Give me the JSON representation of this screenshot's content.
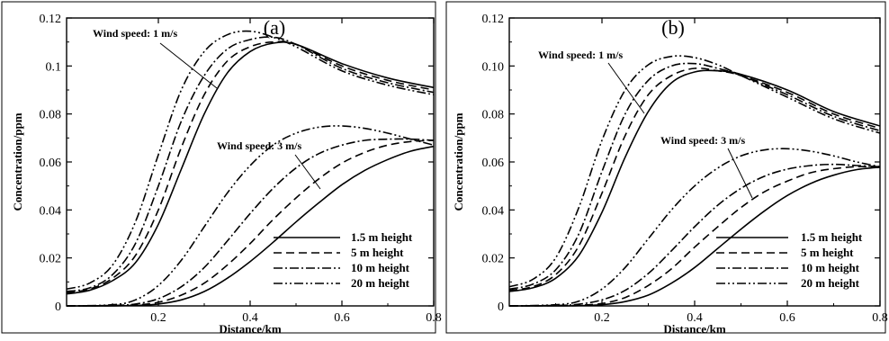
{
  "chart_data": [
    {
      "panel_label": "(a)",
      "type": "line",
      "xlabel": "Distance/km",
      "ylabel": "Concentration/ppm",
      "xlim": [
        0,
        0.8
      ],
      "ylim": [
        0,
        0.12
      ],
      "x_ticks": [
        "0.2",
        "0.4",
        "0.6",
        "0.8"
      ],
      "y_ticks": [
        "0",
        "0.02",
        "0.04",
        "0.06",
        "0.08",
        "0.1",
        "0.12"
      ],
      "legend": [
        "1.5 m height",
        "5 m height",
        "10 m height",
        "20 m height"
      ],
      "legend_position": "bottom-right",
      "annotations": [
        "Wind speed: 1 m/s",
        "Wind speed: 3 m/s"
      ],
      "series": [
        {
          "name": "1.5 m height",
          "group": "Wind speed: 1 m/s",
          "dash": "solid",
          "x": [
            0,
            0.05,
            0.1,
            0.15,
            0.2,
            0.25,
            0.3,
            0.35,
            0.4,
            0.45,
            0.5,
            0.6,
            0.7,
            0.8
          ],
          "y": [
            0.005,
            0.0065,
            0.0105,
            0.018,
            0.034,
            0.057,
            0.08,
            0.097,
            0.106,
            0.1095,
            0.109,
            0.101,
            0.095,
            0.091
          ]
        },
        {
          "name": "5 m height",
          "group": "Wind speed: 1 m/s",
          "dash": "dashed",
          "x": [
            0,
            0.05,
            0.1,
            0.15,
            0.2,
            0.25,
            0.3,
            0.35,
            0.4,
            0.45,
            0.5,
            0.6,
            0.7,
            0.8
          ],
          "y": [
            0.0055,
            0.007,
            0.0115,
            0.021,
            0.04,
            0.066,
            0.088,
            0.102,
            0.108,
            0.11,
            0.109,
            0.1,
            0.094,
            0.09
          ]
        },
        {
          "name": "10 m height",
          "group": "Wind speed: 1 m/s",
          "dash": "dashdot",
          "x": [
            0,
            0.05,
            0.1,
            0.15,
            0.2,
            0.25,
            0.3,
            0.35,
            0.4,
            0.45,
            0.5,
            0.6,
            0.7,
            0.8
          ],
          "y": [
            0.006,
            0.0075,
            0.013,
            0.026,
            0.05,
            0.077,
            0.096,
            0.107,
            0.111,
            0.112,
            0.109,
            0.099,
            0.093,
            0.089
          ]
        },
        {
          "name": "20 m height",
          "group": "Wind speed: 1 m/s",
          "dash": "dashdotdot",
          "x": [
            0,
            0.05,
            0.1,
            0.15,
            0.2,
            0.25,
            0.3,
            0.35,
            0.4,
            0.45,
            0.5,
            0.6,
            0.7,
            0.8
          ],
          "y": [
            0.007,
            0.0095,
            0.017,
            0.035,
            0.063,
            0.09,
            0.106,
            0.113,
            0.1145,
            0.112,
            0.108,
            0.098,
            0.092,
            0.088
          ]
        },
        {
          "name": "1.5 m height",
          "group": "Wind speed: 3 m/s",
          "dash": "solid",
          "x": [
            0,
            0.1,
            0.15,
            0.2,
            0.25,
            0.3,
            0.35,
            0.4,
            0.45,
            0.5,
            0.55,
            0.6,
            0.65,
            0.7,
            0.75,
            0.8
          ],
          "y": [
            0,
            0,
            0.0002,
            0.0008,
            0.0025,
            0.006,
            0.0115,
            0.0185,
            0.0265,
            0.035,
            0.043,
            0.0505,
            0.0565,
            0.061,
            0.0645,
            0.0665
          ]
        },
        {
          "name": "5 m height",
          "group": "Wind speed: 3 m/s",
          "dash": "dashed",
          "x": [
            0,
            0.1,
            0.15,
            0.2,
            0.25,
            0.3,
            0.35,
            0.4,
            0.45,
            0.5,
            0.55,
            0.6,
            0.65,
            0.7,
            0.75,
            0.8
          ],
          "y": [
            0,
            0.0001,
            0.0004,
            0.0015,
            0.0045,
            0.0095,
            0.017,
            0.026,
            0.036,
            0.045,
            0.053,
            0.0595,
            0.064,
            0.067,
            0.0685,
            0.069
          ]
        },
        {
          "name": "10 m height",
          "group": "Wind speed: 3 m/s",
          "dash": "dashdot",
          "x": [
            0,
            0.1,
            0.15,
            0.2,
            0.25,
            0.3,
            0.35,
            0.4,
            0.45,
            0.5,
            0.55,
            0.6,
            0.65,
            0.7,
            0.75,
            0.8
          ],
          "y": [
            0,
            0.0002,
            0.0008,
            0.003,
            0.008,
            0.016,
            0.027,
            0.0385,
            0.049,
            0.0575,
            0.0635,
            0.067,
            0.069,
            0.0695,
            0.0695,
            0.069
          ]
        },
        {
          "name": "20 m height",
          "group": "Wind speed: 3 m/s",
          "dash": "dashdotdot",
          "x": [
            0,
            0.1,
            0.15,
            0.2,
            0.25,
            0.3,
            0.35,
            0.4,
            0.45,
            0.5,
            0.55,
            0.6,
            0.65,
            0.7,
            0.75,
            0.8
          ],
          "y": [
            0,
            0.0005,
            0.0025,
            0.0085,
            0.019,
            0.033,
            0.047,
            0.0585,
            0.067,
            0.072,
            0.0745,
            0.075,
            0.074,
            0.072,
            0.0695,
            0.067
          ]
        }
      ]
    },
    {
      "panel_label": "(b)",
      "type": "line",
      "xlabel": "Distance/km",
      "ylabel": "Concentration/ppm",
      "xlim": [
        0,
        0.8
      ],
      "ylim": [
        0,
        0.12
      ],
      "x_ticks": [
        "0.2",
        "0.4",
        "0.6",
        "0.8"
      ],
      "y_ticks": [
        "0",
        "0.02",
        "0.04",
        "0.06",
        "0.08",
        "0.10",
        "0.12"
      ],
      "legend": [
        "1.5 m height",
        "5 m height",
        "10 m height",
        "20 m height"
      ],
      "legend_position": "bottom-right",
      "annotations": [
        "Wind speed: 1 m/s",
        "Wind speed: 3 m/s"
      ],
      "series": [
        {
          "name": "1.5 m height",
          "group": "Wind speed: 1 m/s",
          "dash": "solid",
          "x": [
            0,
            0.05,
            0.1,
            0.15,
            0.2,
            0.25,
            0.3,
            0.35,
            0.4,
            0.45,
            0.5,
            0.6,
            0.7,
            0.8
          ],
          "y": [
            0.006,
            0.0075,
            0.0115,
            0.021,
            0.039,
            0.062,
            0.081,
            0.093,
            0.0975,
            0.098,
            0.0965,
            0.09,
            0.081,
            0.075
          ]
        },
        {
          "name": "5 m height",
          "group": "Wind speed: 1 m/s",
          "dash": "dashed",
          "x": [
            0,
            0.05,
            0.1,
            0.15,
            0.2,
            0.25,
            0.3,
            0.35,
            0.4,
            0.45,
            0.5,
            0.6,
            0.7,
            0.8
          ],
          "y": [
            0.0065,
            0.008,
            0.013,
            0.025,
            0.047,
            0.071,
            0.088,
            0.096,
            0.099,
            0.098,
            0.096,
            0.089,
            0.08,
            0.074
          ]
        },
        {
          "name": "10 m height",
          "group": "Wind speed: 1 m/s",
          "dash": "dashdot",
          "x": [
            0,
            0.05,
            0.1,
            0.15,
            0.2,
            0.25,
            0.3,
            0.35,
            0.4,
            0.45,
            0.5,
            0.6,
            0.7,
            0.8
          ],
          "y": [
            0.007,
            0.009,
            0.015,
            0.03,
            0.056,
            0.08,
            0.094,
            0.1,
            0.101,
            0.099,
            0.096,
            0.088,
            0.079,
            0.073
          ]
        },
        {
          "name": "20 m height",
          "group": "Wind speed: 1 m/s",
          "dash": "dashdotdot",
          "x": [
            0,
            0.05,
            0.1,
            0.15,
            0.2,
            0.25,
            0.3,
            0.35,
            0.4,
            0.45,
            0.5,
            0.6,
            0.7,
            0.8
          ],
          "y": [
            0.008,
            0.011,
            0.02,
            0.041,
            0.069,
            0.09,
            0.1005,
            0.104,
            0.1035,
            0.1005,
            0.096,
            0.087,
            0.078,
            0.072
          ]
        },
        {
          "name": "1.5 m height",
          "group": "Wind speed: 3 m/s",
          "dash": "solid",
          "x": [
            0,
            0.1,
            0.15,
            0.2,
            0.25,
            0.3,
            0.35,
            0.4,
            0.45,
            0.5,
            0.55,
            0.6,
            0.65,
            0.7,
            0.75,
            0.8
          ],
          "y": [
            0,
            0,
            0.0001,
            0.0005,
            0.0018,
            0.0045,
            0.0095,
            0.016,
            0.024,
            0.032,
            0.0395,
            0.046,
            0.051,
            0.0545,
            0.0568,
            0.0578
          ]
        },
        {
          "name": "5 m height",
          "group": "Wind speed: 3 m/s",
          "dash": "dashed",
          "x": [
            0,
            0.1,
            0.15,
            0.2,
            0.25,
            0.3,
            0.35,
            0.4,
            0.45,
            0.5,
            0.55,
            0.6,
            0.65,
            0.7,
            0.75,
            0.8
          ],
          "y": [
            0,
            0.0001,
            0.0003,
            0.001,
            0.0035,
            0.0085,
            0.0155,
            0.0245,
            0.033,
            0.041,
            0.0475,
            0.052,
            0.0555,
            0.0572,
            0.058,
            0.058
          ]
        },
        {
          "name": "10 m height",
          "group": "Wind speed: 3 m/s",
          "dash": "dashdot",
          "x": [
            0,
            0.1,
            0.15,
            0.2,
            0.25,
            0.3,
            0.35,
            0.4,
            0.45,
            0.5,
            0.55,
            0.6,
            0.65,
            0.7,
            0.75,
            0.8
          ],
          "y": [
            0,
            0.0002,
            0.0007,
            0.0025,
            0.0065,
            0.0135,
            0.023,
            0.033,
            0.042,
            0.049,
            0.054,
            0.057,
            0.0585,
            0.059,
            0.0585,
            0.058
          ]
        },
        {
          "name": "20 m height",
          "group": "Wind speed: 3 m/s",
          "dash": "dashdotdot",
          "x": [
            0,
            0.1,
            0.15,
            0.2,
            0.25,
            0.3,
            0.35,
            0.4,
            0.45,
            0.5,
            0.55,
            0.6,
            0.65,
            0.7,
            0.75,
            0.8
          ],
          "y": [
            0,
            0.0005,
            0.002,
            0.007,
            0.016,
            0.028,
            0.04,
            0.05,
            0.0575,
            0.0625,
            0.065,
            0.0655,
            0.0645,
            0.0625,
            0.06,
            0.058
          ]
        }
      ]
    }
  ]
}
